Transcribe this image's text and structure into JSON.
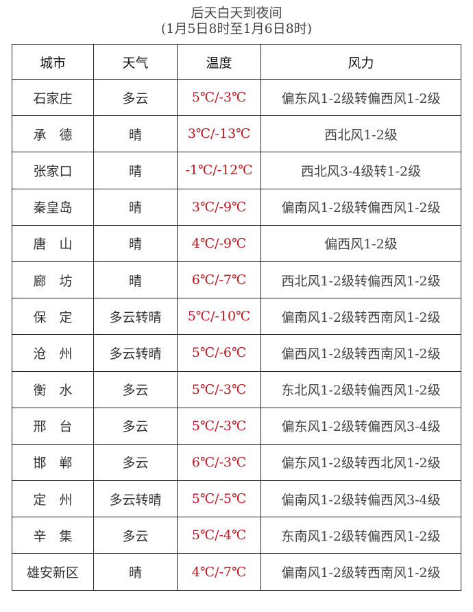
{
  "title": "后天白天到夜间",
  "subtitle": "(1月5日8时至1月6日8时)",
  "colors": {
    "temperature": "#c0141e",
    "text": "#333333"
  },
  "headers": [
    "城市",
    "天气",
    "温度",
    "风力"
  ],
  "rows": [
    {
      "city": "石家庄",
      "weather": "多云",
      "temp": "5℃/-3℃",
      "wind": "偏东风1-2级转偏西风1-2级"
    },
    {
      "city": "承　德",
      "weather": "晴",
      "temp": "3℃/-13℃",
      "wind": "西北风1-2级"
    },
    {
      "city": "张家口",
      "weather": "晴",
      "temp": "-1℃/-12℃",
      "wind": "西北风3-4级转1-2级"
    },
    {
      "city": "秦皇岛",
      "weather": "晴",
      "temp": "3℃/-9℃",
      "wind": "偏南风1-2级转偏西风1-2级"
    },
    {
      "city": "唐　山",
      "weather": "晴",
      "temp": "4℃/-9℃",
      "wind": "偏西风1-2级"
    },
    {
      "city": "廊　坊",
      "weather": "晴",
      "temp": "6℃/-7℃",
      "wind": "西北风1-2级转偏西风1-2级"
    },
    {
      "city": "保　定",
      "weather": "多云转晴",
      "temp": "5℃/-10℃",
      "wind": "偏南风1-2级转西南风1-2级"
    },
    {
      "city": "沧　州",
      "weather": "多云转晴",
      "temp": "5℃/-6℃",
      "wind": "偏西风1-2级转西南风1-2级"
    },
    {
      "city": "衡　水",
      "weather": "多云",
      "temp": "5℃/-3℃",
      "wind": "东北风1-2级转偏西风1-2级"
    },
    {
      "city": "邢　台",
      "weather": "多云",
      "temp": "5℃/-3℃",
      "wind": "偏东风1-2级转偏西风3-4级"
    },
    {
      "city": "邯　郸",
      "weather": "多云",
      "temp": "6℃/-3℃",
      "wind": "偏东风1-2级转西北风1-2级"
    },
    {
      "city": "定　州",
      "weather": "多云转晴",
      "temp": "5℃/-5℃",
      "wind": "偏南风1-2级转偏西风3-4级"
    },
    {
      "city": "辛　集",
      "weather": "多云",
      "temp": "5℃/-4℃",
      "wind": "东南风1-2级转偏西风1-2级"
    },
    {
      "city": "雄安新区",
      "weather": "晴",
      "temp": "4℃/-7℃",
      "wind": "偏南风1-2级转西南风1-2级"
    }
  ]
}
